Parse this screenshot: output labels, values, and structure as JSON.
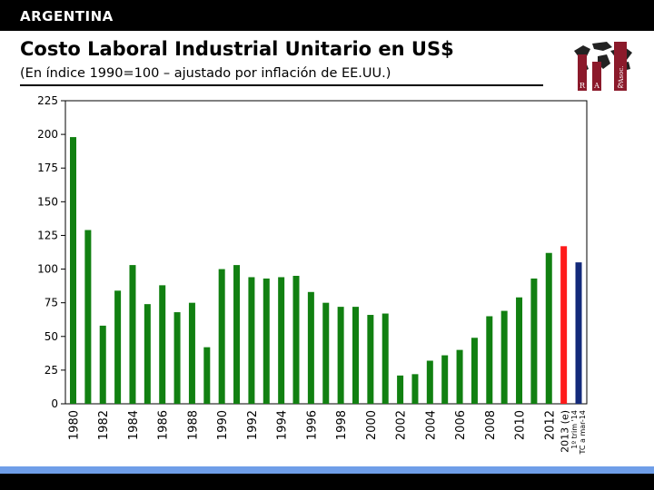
{
  "header": {
    "country": "ARGENTINA",
    "title": "Costo Laboral Industrial Unitario en US$",
    "subtitle": "(En índice 1990=100 – ajustado por inflación de EE.UU.)"
  },
  "logo": {
    "letters": [
      "R",
      "A",
      "&",
      "Asoc."
    ],
    "icon": "world-map-icon"
  },
  "colors": {
    "bar_default": "#118011",
    "bar_estimate": "#ff1a1a",
    "bar_latest": "#132a7a",
    "accent_light": "#6f9ee8",
    "header_bg": "#000000"
  },
  "chart_data": {
    "type": "bar",
    "ylim": [
      0,
      225
    ],
    "yticks": [
      0,
      25,
      50,
      75,
      100,
      125,
      150,
      175,
      200,
      225
    ],
    "grid": false,
    "categories": [
      "1980",
      "1981",
      "1982",
      "1983",
      "1984",
      "1985",
      "1986",
      "1987",
      "1988",
      "1989",
      "1990",
      "1991",
      "1992",
      "1993",
      "1994",
      "1995",
      "1996",
      "1997",
      "1998",
      "1999",
      "2000",
      "2001",
      "2002",
      "2003",
      "2004",
      "2005",
      "2006",
      "2007",
      "2008",
      "2009",
      "2010",
      "2011",
      "2012",
      "2013 (e)",
      "1º trim '14 TC a mar-14"
    ],
    "xtick_labels": [
      "1980",
      "1982",
      "1984",
      "1986",
      "1988",
      "1990",
      "1992",
      "1994",
      "1996",
      "1998",
      "2000",
      "2002",
      "2004",
      "2006",
      "2008",
      "2010",
      "2012",
      "2013 (e)",
      "1º trim '14",
      "TC a mar-14"
    ],
    "values": [
      198,
      129,
      58,
      84,
      103,
      74,
      88,
      68,
      75,
      42,
      100,
      103,
      94,
      93,
      94,
      95,
      83,
      75,
      72,
      72,
      66,
      67,
      21,
      22,
      32,
      36,
      40,
      49,
      65,
      69,
      79,
      93,
      112,
      117,
      105
    ],
    "bar_colors": [
      "green",
      "green",
      "green",
      "green",
      "green",
      "green",
      "green",
      "green",
      "green",
      "green",
      "green",
      "green",
      "green",
      "green",
      "green",
      "green",
      "green",
      "green",
      "green",
      "green",
      "green",
      "green",
      "green",
      "green",
      "green",
      "green",
      "green",
      "green",
      "green",
      "green",
      "green",
      "green",
      "green",
      "red",
      "navy"
    ]
  }
}
